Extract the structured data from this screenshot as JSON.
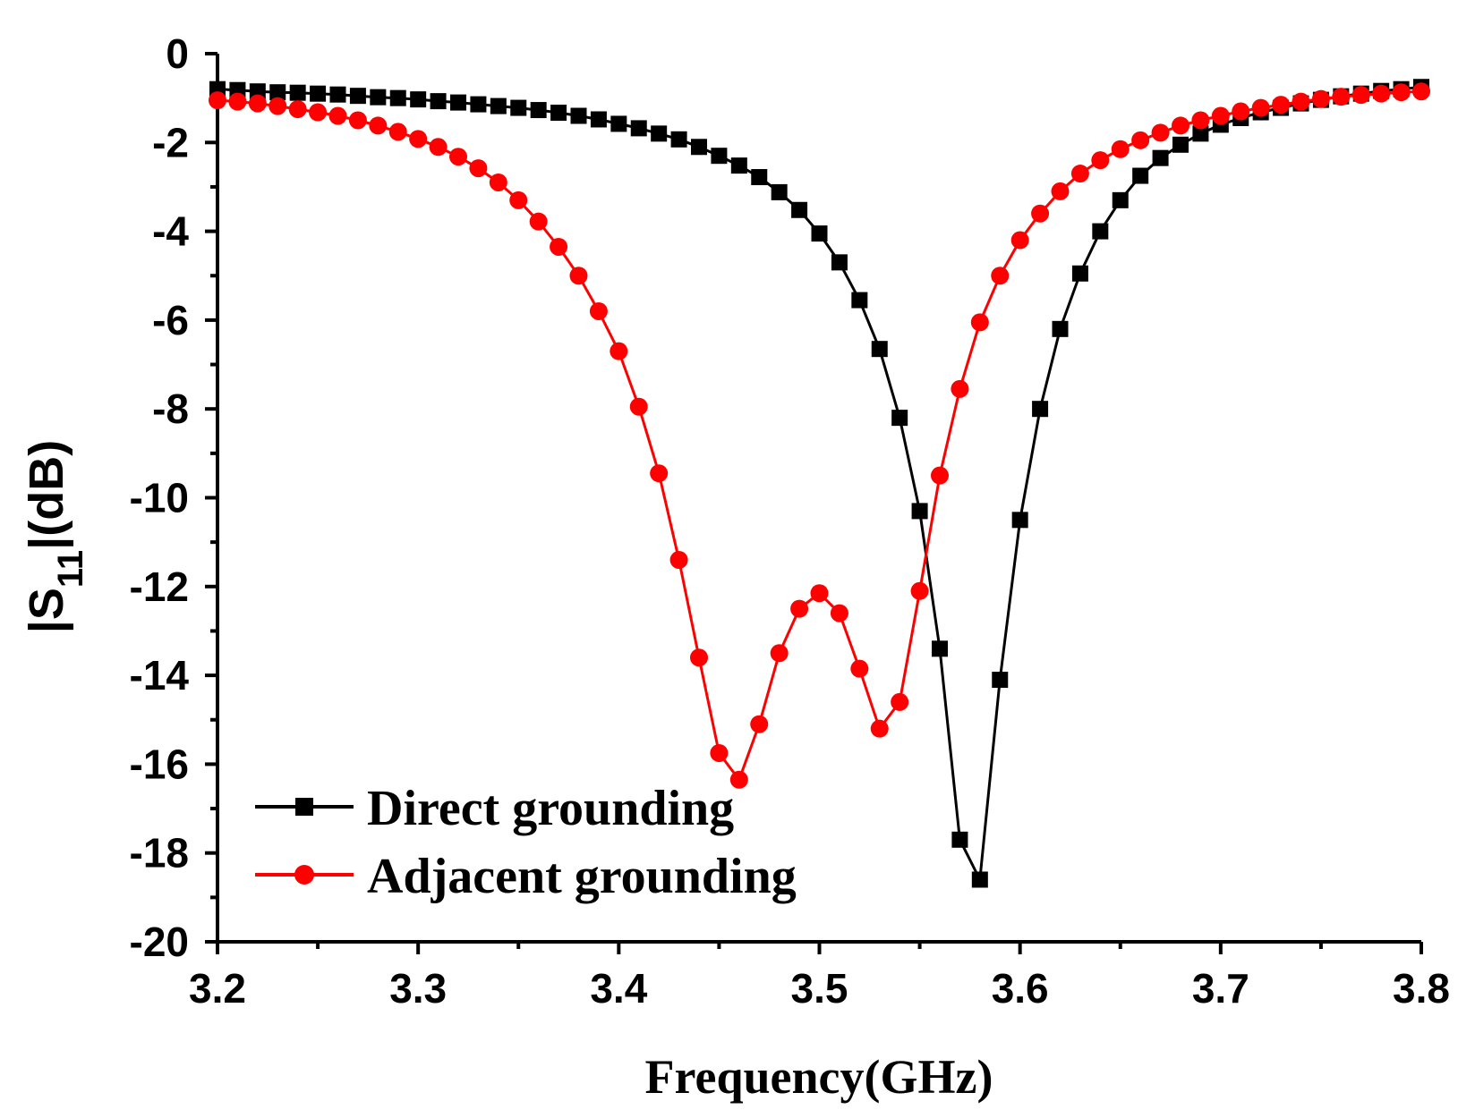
{
  "chart_data": {
    "type": "line",
    "title": "",
    "xlabel": "Frequency(GHz)",
    "ylabel": {
      "prefix": "|S",
      "subscript": "11",
      "suffix": "|(dB)"
    },
    "xlim": [
      3.2,
      3.8
    ],
    "ylim": [
      -20,
      0
    ],
    "xticks": [
      3.2,
      3.3,
      3.4,
      3.5,
      3.6,
      3.7,
      3.8
    ],
    "xtick_labels": [
      "3.2",
      "3.3",
      "3.4",
      "3.5",
      "3.6",
      "3.7",
      "3.8"
    ],
    "yticks": [
      0,
      -2,
      -4,
      -6,
      -8,
      -10,
      -12,
      -14,
      -16,
      -18,
      -20
    ],
    "ytick_labels": [
      "0",
      "-2",
      "-4",
      "-6",
      "-8",
      "-10",
      "-12",
      "-14",
      "-16",
      "-18",
      "-20"
    ],
    "grid": false,
    "legend_position": "bottom-left",
    "x": [
      3.2,
      3.21,
      3.22,
      3.23,
      3.24,
      3.25,
      3.26,
      3.27,
      3.28,
      3.29,
      3.3,
      3.31,
      3.32,
      3.33,
      3.34,
      3.35,
      3.36,
      3.37,
      3.38,
      3.39,
      3.4,
      3.41,
      3.42,
      3.43,
      3.44,
      3.45,
      3.46,
      3.47,
      3.48,
      3.49,
      3.5,
      3.51,
      3.52,
      3.53,
      3.54,
      3.55,
      3.56,
      3.57,
      3.58,
      3.59,
      3.6,
      3.61,
      3.62,
      3.63,
      3.64,
      3.65,
      3.66,
      3.67,
      3.68,
      3.69,
      3.7,
      3.71,
      3.72,
      3.73,
      3.74,
      3.75,
      3.76,
      3.77,
      3.78,
      3.79,
      3.8
    ],
    "series": [
      {
        "name": "Direct grounding",
        "color": "#000000",
        "marker": "square",
        "values": [
          -0.8,
          -0.82,
          -0.85,
          -0.87,
          -0.88,
          -0.9,
          -0.92,
          -0.95,
          -0.98,
          -1.0,
          -1.03,
          -1.07,
          -1.1,
          -1.14,
          -1.18,
          -1.22,
          -1.27,
          -1.33,
          -1.4,
          -1.48,
          -1.58,
          -1.68,
          -1.8,
          -1.93,
          -2.1,
          -2.3,
          -2.52,
          -2.78,
          -3.12,
          -3.52,
          -4.05,
          -4.7,
          -5.55,
          -6.65,
          -8.2,
          -10.3,
          -13.4,
          -17.7,
          -18.6,
          -14.1,
          -10.5,
          -8.0,
          -6.2,
          -4.95,
          -4.0,
          -3.3,
          -2.75,
          -2.35,
          -2.05,
          -1.8,
          -1.6,
          -1.45,
          -1.32,
          -1.22,
          -1.12,
          -1.04,
          -0.96,
          -0.9,
          -0.84,
          -0.8,
          -0.75
        ]
      },
      {
        "name": "Adjacent grounding",
        "color": "#ff0000",
        "marker": "circle",
        "values": [
          -1.05,
          -1.08,
          -1.12,
          -1.18,
          -1.25,
          -1.32,
          -1.4,
          -1.5,
          -1.62,
          -1.76,
          -1.92,
          -2.1,
          -2.32,
          -2.58,
          -2.9,
          -3.3,
          -3.78,
          -4.35,
          -5.0,
          -5.8,
          -6.7,
          -7.95,
          -9.45,
          -11.4,
          -13.6,
          -15.75,
          -16.35,
          -15.1,
          -13.5,
          -12.5,
          -12.15,
          -12.6,
          -13.85,
          -15.2,
          -14.6,
          -12.1,
          -9.5,
          -7.55,
          -6.05,
          -5.0,
          -4.2,
          -3.6,
          -3.1,
          -2.7,
          -2.4,
          -2.15,
          -1.95,
          -1.78,
          -1.62,
          -1.5,
          -1.4,
          -1.3,
          -1.22,
          -1.15,
          -1.08,
          -1.02,
          -0.97,
          -0.93,
          -0.9,
          -0.87,
          -0.85
        ]
      }
    ]
  }
}
